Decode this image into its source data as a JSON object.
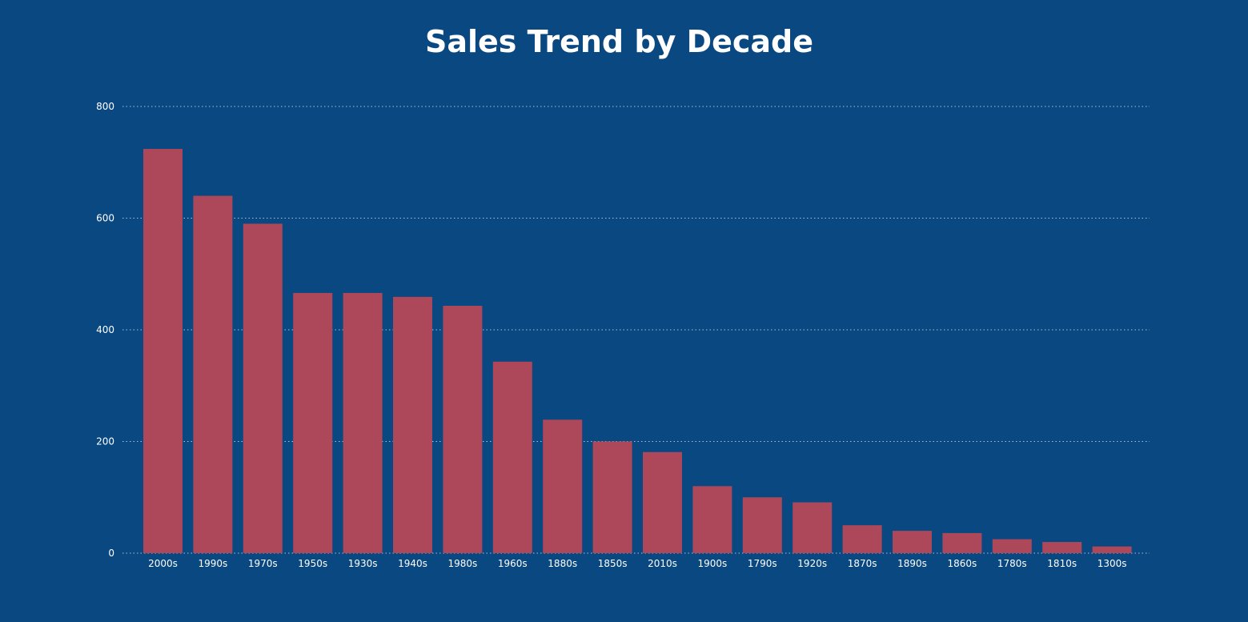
{
  "colors": {
    "background": "#0a4881",
    "bar": "#ac4859",
    "grid": "#a8bfd8",
    "text": "#ffffff"
  },
  "chart_data": {
    "type": "bar",
    "title": "Sales Trend by Decade",
    "xlabel": "",
    "ylabel": "",
    "ylim": [
      0,
      800
    ],
    "yticks": [
      0,
      200,
      400,
      600,
      800
    ],
    "grid": true,
    "categories": [
      "2000s",
      "1990s",
      "1970s",
      "1950s",
      "1930s",
      "1940s",
      "1980s",
      "1960s",
      "1880s",
      "1850s",
      "2010s",
      "1900s",
      "1790s",
      "1920s",
      "1870s",
      "1890s",
      "1860s",
      "1780s",
      "1810s",
      "1300s"
    ],
    "values": [
      724,
      640,
      590,
      466,
      466,
      459,
      443,
      343,
      239,
      200,
      181,
      120,
      100,
      91,
      50,
      40,
      36,
      25,
      20,
      12
    ]
  }
}
